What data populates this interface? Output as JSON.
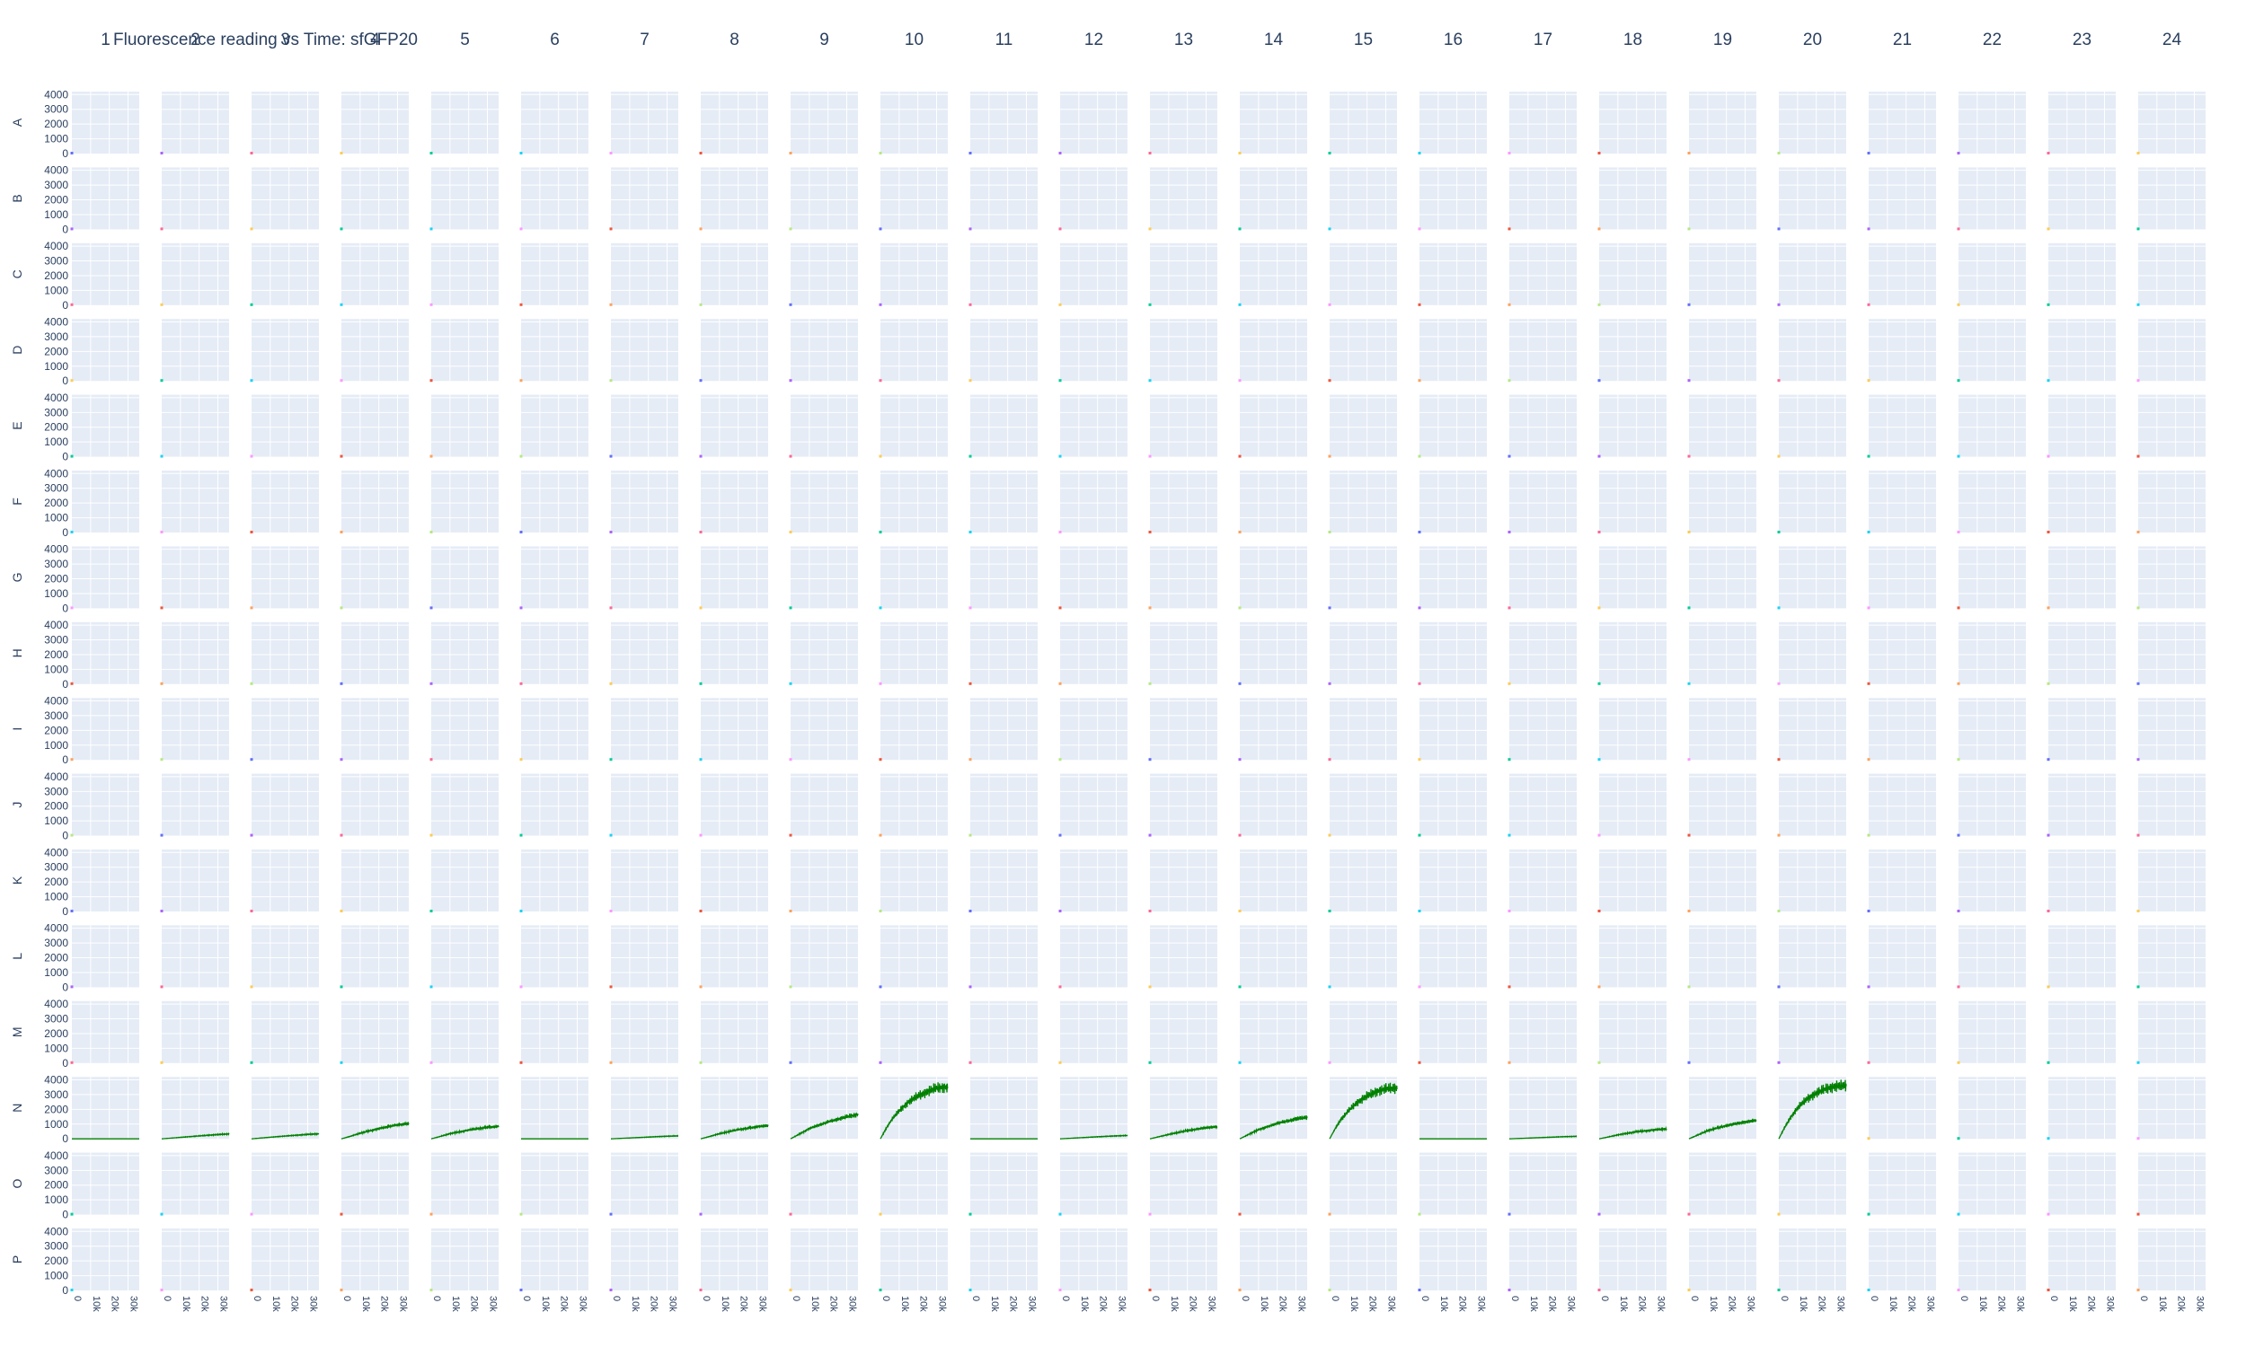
{
  "chart_data": {
    "type": "line",
    "layout": "small-multiples plate grid",
    "title": "Fluorescence reading vs Time: sfGFP20",
    "columns": [
      "1",
      "2",
      "3",
      "4",
      "5",
      "6",
      "7",
      "8",
      "9",
      "10",
      "11",
      "12",
      "13",
      "14",
      "15",
      "16",
      "17",
      "18",
      "19",
      "20",
      "21",
      "22",
      "23",
      "24"
    ],
    "rows": [
      "A",
      "B",
      "C",
      "D",
      "E",
      "F",
      "G",
      "H",
      "I",
      "J",
      "K",
      "L",
      "M",
      "N",
      "O",
      "P"
    ],
    "yticks": [
      "0",
      "1000",
      "2000",
      "3000",
      "4000"
    ],
    "ylim": [
      0,
      4200
    ],
    "xticks": [
      "0",
      "10k",
      "20k",
      "30k"
    ],
    "xlim": [
      0,
      36000
    ],
    "plot_bg": "#e5ecf6",
    "grid": true,
    "noise_color": "#008000",
    "marker_palette": [
      "#636efa",
      "#ef553b",
      "#00cc96",
      "#ab63fa",
      "#ffa15a",
      "#19d3f3",
      "#ff6692",
      "#b6e880",
      "#ff97ff",
      "#fecb52"
    ],
    "active_row": "N",
    "series": [
      {
        "well": "N1",
        "color": "#008000",
        "x": [
          0,
          36000
        ],
        "y": [
          0,
          0
        ]
      },
      {
        "well": "N2",
        "color": "#008000",
        "x": [
          0,
          10000,
          20000,
          30000,
          36000
        ],
        "y": [
          0,
          100,
          200,
          290,
          330
        ]
      },
      {
        "well": "N3",
        "color": "#008000",
        "x": [
          0,
          10000,
          20000,
          30000,
          36000
        ],
        "y": [
          0,
          110,
          210,
          300,
          340
        ]
      },
      {
        "well": "N4",
        "color": "#008000",
        "x": [
          0,
          5000,
          10000,
          20000,
          30000,
          36000
        ],
        "y": [
          0,
          180,
          380,
          700,
          950,
          1050
        ]
      },
      {
        "well": "N5",
        "color": "#008000",
        "x": [
          0,
          5000,
          10000,
          20000,
          30000,
          36000
        ],
        "y": [
          0,
          170,
          350,
          600,
          780,
          850
        ]
      },
      {
        "well": "N6",
        "color": "#008000",
        "x": [
          0,
          36000
        ],
        "y": [
          0,
          0
        ]
      },
      {
        "well": "N7",
        "color": "#008000",
        "x": [
          0,
          10000,
          20000,
          30000,
          36000
        ],
        "y": [
          0,
          60,
          120,
          180,
          200
        ]
      },
      {
        "well": "N8",
        "color": "#008000",
        "x": [
          0,
          5000,
          10000,
          20000,
          30000,
          36000
        ],
        "y": [
          0,
          170,
          350,
          620,
          820,
          900
        ]
      },
      {
        "well": "N9",
        "color": "#008000",
        "x": [
          0,
          5000,
          10000,
          20000,
          30000,
          36000
        ],
        "y": [
          0,
          350,
          700,
          1150,
          1500,
          1650
        ]
      },
      {
        "well": "N10",
        "color": "#008000",
        "x": [
          0,
          3000,
          6000,
          10000,
          15000,
          20000,
          25000,
          30000,
          36000
        ],
        "y": [
          0,
          700,
          1300,
          1900,
          2500,
          2900,
          3200,
          3450,
          3500
        ]
      },
      {
        "well": "N11",
        "color": "#008000",
        "x": [
          0,
          36000
        ],
        "y": [
          0,
          0
        ]
      },
      {
        "well": "N12",
        "color": "#008000",
        "x": [
          0,
          10000,
          20000,
          30000,
          36000
        ],
        "y": [
          0,
          70,
          140,
          200,
          230
        ]
      },
      {
        "well": "N13",
        "color": "#008000",
        "x": [
          0,
          5000,
          10000,
          20000,
          30000,
          36000
        ],
        "y": [
          0,
          150,
          300,
          560,
          750,
          820
        ]
      },
      {
        "well": "N14",
        "color": "#008000",
        "x": [
          0,
          5000,
          10000,
          20000,
          30000,
          36000
        ],
        "y": [
          0,
          320,
          620,
          1050,
          1350,
          1450
        ]
      },
      {
        "well": "N15",
        "color": "#008000",
        "x": [
          0,
          3000,
          6000,
          10000,
          15000,
          20000,
          25000,
          30000,
          36000
        ],
        "y": [
          0,
          700,
          1300,
          1900,
          2500,
          2900,
          3200,
          3400,
          3450
        ]
      },
      {
        "well": "N16",
        "color": "#008000",
        "x": [
          0,
          36000
        ],
        "y": [
          0,
          0
        ]
      },
      {
        "well": "N17",
        "color": "#008000",
        "x": [
          0,
          10000,
          20000,
          30000,
          36000
        ],
        "y": [
          0,
          50,
          100,
          150,
          170
        ]
      },
      {
        "well": "N18",
        "color": "#008000",
        "x": [
          0,
          5000,
          10000,
          20000,
          30000,
          36000
        ],
        "y": [
          0,
          130,
          270,
          480,
          620,
          670
        ]
      },
      {
        "well": "N19",
        "color": "#008000",
        "x": [
          0,
          5000,
          10000,
          20000,
          30000,
          36000
        ],
        "y": [
          0,
          280,
          550,
          900,
          1150,
          1250
        ]
      },
      {
        "well": "N20",
        "color": "#008000",
        "x": [
          0,
          3000,
          6000,
          10000,
          15000,
          20000,
          25000,
          30000,
          36000
        ],
        "y": [
          0,
          750,
          1400,
          2100,
          2700,
          3100,
          3400,
          3550,
          3600
        ]
      }
    ]
  }
}
